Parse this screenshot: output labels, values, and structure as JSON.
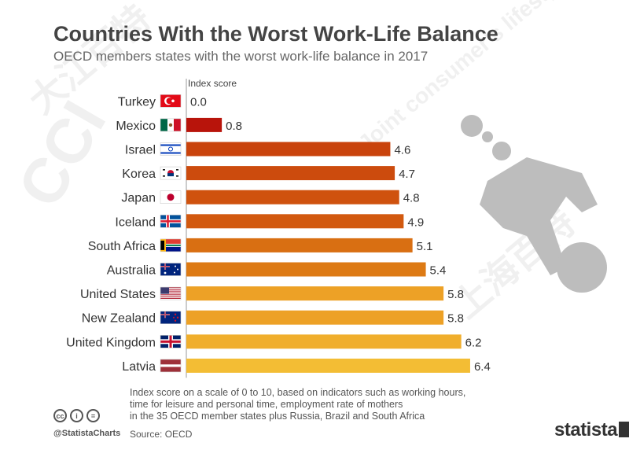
{
  "header": {
    "title": "Countries With the Worst Work-Life Balance",
    "subtitle": "OECD members states with the worst work-life balance in 2017"
  },
  "chart_data": {
    "type": "bar",
    "orientation": "horizontal",
    "value_label": "Index score",
    "categories": [
      "Turkey",
      "Mexico",
      "Israel",
      "Korea",
      "Japan",
      "Iceland",
      "South Africa",
      "Australia",
      "United States",
      "New Zealand",
      "United Kingdom",
      "Latvia"
    ],
    "values": [
      0.0,
      0.8,
      4.6,
      4.7,
      4.8,
      4.9,
      5.1,
      5.4,
      5.8,
      5.8,
      6.2,
      6.4
    ],
    "value_labels": [
      "0.0",
      "0.8",
      "4.6",
      "4.7",
      "4.8",
      "4.9",
      "5.1",
      "5.4",
      "5.8",
      "5.8",
      "6.2",
      "6.4"
    ],
    "xlim": [
      0,
      10
    ],
    "bar_colors": [
      "#b8140b",
      "#b8140b",
      "#c9430c",
      "#cc4b0d",
      "#cf520e",
      "#d2590f",
      "#d96f12",
      "#dd7a14",
      "#eda126",
      "#eda126",
      "#f0ae2c",
      "#f3bd34"
    ],
    "flags": [
      "turkey-flag",
      "mexico-flag",
      "israel-flag",
      "korea-flag",
      "japan-flag",
      "iceland-flag",
      "south-africa-flag",
      "australia-flag",
      "us-flag",
      "new-zealand-flag",
      "uk-flag",
      "latvia-flag"
    ],
    "grid": false,
    "legend": "none"
  },
  "footer": {
    "note_lines": [
      "Index score on a scale of 0 to 10, based on indicators such as working hours,",
      "time for leisure and personal time, employment rate of mothers",
      "in the 35 OECD member states plus Russia, Brazil and South Africa"
    ],
    "handle": "@StatistaCharts",
    "source": "Source: OECD",
    "brand": "statista",
    "cc_icons": [
      "cc",
      "by",
      "nd"
    ]
  },
  "watermark": {
    "texts": [
      "大江百特",
      "CCI",
      "Joint consumer's lifestyle",
      "上海百特"
    ]
  }
}
